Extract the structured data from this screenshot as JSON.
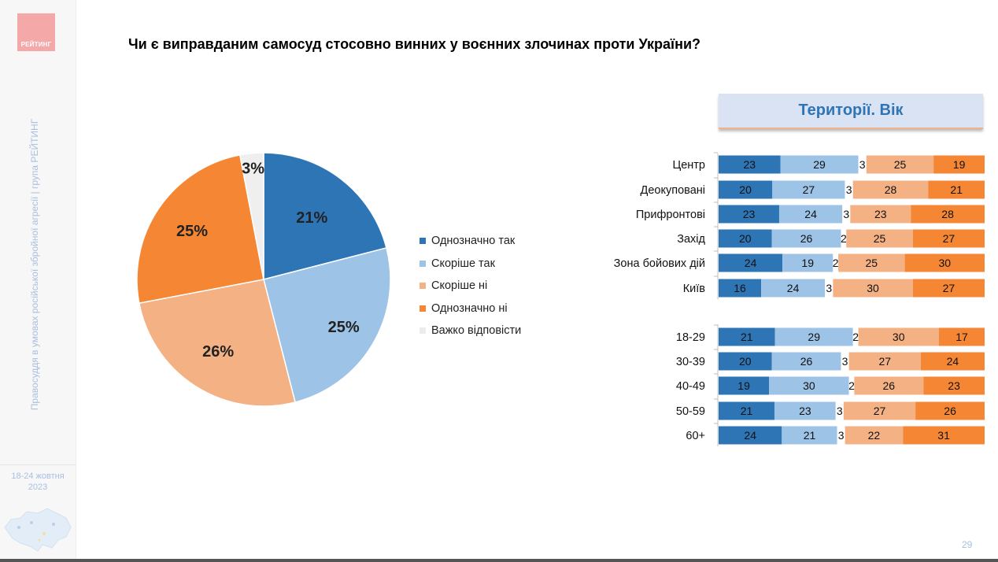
{
  "logo": {
    "text": "РЕЙТИНГ"
  },
  "sidebar": {
    "vertical_text": "Правосуддя в умовах російської збройної агресії | група РЕЙТИНГ",
    "date_line1": "18-24 жовтня",
    "date_line2": "2023"
  },
  "title": "Чи є виправданим самосуд стосовно винних у воєнних злочинах проти України?",
  "page_number": "29",
  "colors": {
    "definitely_yes": "#2e75b6",
    "rather_yes": "#9dc3e6",
    "rather_no": "#f4b183",
    "definitely_no": "#f58634",
    "hard_to_say": "#efefef"
  },
  "chart_data": [
    {
      "type": "pie",
      "labels": [
        "Однозначно так",
        "Скоріше так",
        "Скоріше ні",
        "Однозначно ні",
        "Важко відповісти"
      ],
      "values": [
        21,
        25,
        26,
        25,
        3
      ],
      "value_labels": [
        "21%",
        "25%",
        "26%",
        "25%",
        "3%"
      ],
      "legend_position": "right"
    },
    {
      "type": "bar",
      "orientation": "horizontal",
      "stacked": true,
      "header": "Території. Вік",
      "series_order": [
        "Однозначно так",
        "Скоріше так",
        "Важко відповісти",
        "Скоріше ні",
        "Однозначно ні"
      ],
      "groups": [
        {
          "categories": [
            "Центр",
            "Деокуповані",
            "Прифронтові",
            "Захід",
            "Зона бойових дій",
            "Київ"
          ],
          "rows": [
            [
              23,
              29,
              3,
              25,
              19
            ],
            [
              20,
              27,
              3,
              28,
              21
            ],
            [
              23,
              24,
              3,
              23,
              28
            ],
            [
              20,
              26,
              2,
              25,
              27
            ],
            [
              24,
              19,
              2,
              25,
              30
            ],
            [
              16,
              24,
              3,
              30,
              27
            ]
          ]
        },
        {
          "categories": [
            "18-29",
            "30-39",
            "40-49",
            "50-59",
            "60+"
          ],
          "rows": [
            [
              21,
              29,
              2,
              30,
              17
            ],
            [
              20,
              26,
              3,
              27,
              24
            ],
            [
              19,
              30,
              2,
              26,
              23
            ],
            [
              21,
              23,
              3,
              27,
              26
            ],
            [
              24,
              21,
              3,
              22,
              31
            ]
          ]
        }
      ]
    }
  ]
}
